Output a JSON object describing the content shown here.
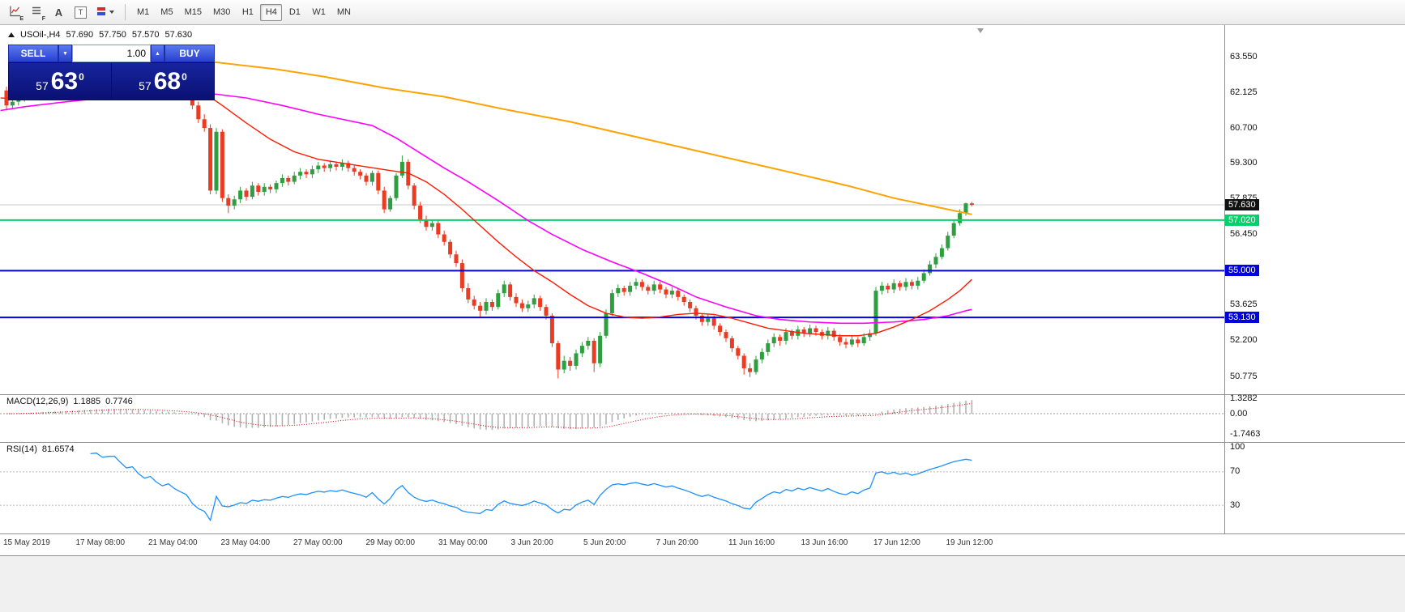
{
  "toolbar": {
    "icons": [
      {
        "name": "chart-window",
        "sub": "E"
      },
      {
        "name": "indicator-list",
        "sub": "F"
      },
      {
        "name": "annotation",
        "label": "A"
      },
      {
        "name": "text-tool",
        "label": "T"
      },
      {
        "name": "colors-dropdown",
        "label": ""
      }
    ],
    "timeframes": [
      "M1",
      "M5",
      "M15",
      "M30",
      "H1",
      "H4",
      "D1",
      "W1",
      "MN"
    ],
    "active_timeframe": "H4"
  },
  "chart": {
    "symbol_header": {
      "symbol": "USOil-,H4",
      "open": "57.690",
      "high": "57.750",
      "low": "57.570",
      "close": "57.630"
    },
    "trade_panel": {
      "sell_label": "SELL",
      "buy_label": "BUY",
      "volume": "1.00",
      "sell_price": {
        "prefix": "57",
        "main": "63",
        "sup": "0"
      },
      "buy_price": {
        "prefix": "57",
        "main": "68",
        "sup": "0"
      }
    },
    "badges": [
      {
        "text": "57.630",
        "price": 57.63,
        "bg": "#111111",
        "fg": "#ffffff"
      },
      {
        "text": "57.020",
        "price": 57.02,
        "bg": "#00d26a",
        "fg": "#ffffff"
      },
      {
        "text": "55.000",
        "price": 55.0,
        "bg": "#0000e0",
        "fg": "#ffffff"
      },
      {
        "text": "53.130",
        "price": 53.13,
        "bg": "#0000e0",
        "fg": "#ffffff"
      }
    ],
    "hlines": [
      {
        "price": 57.63,
        "color": "#c9c9c9",
        "width": 1,
        "layer": "back"
      },
      {
        "price": 57.02,
        "color": "#00d26a",
        "width": 2,
        "layer": "front"
      },
      {
        "price": 55.0,
        "color": "#0000e0",
        "width": 2,
        "layer": "front"
      },
      {
        "price": 53.13,
        "color": "#0000e0",
        "width": 2,
        "layer": "front"
      }
    ]
  },
  "colors": {
    "up": "#2f9e41",
    "down": "#ea3b23",
    "ma_slow": "#ffa200",
    "ma_mid": "#ff00ff",
    "ma_fast": "#ff1a00",
    "rsi": "#1e90ff",
    "macd_hist": "#b2b2b2",
    "macd_signal": "#dd0000",
    "bid_line": "#c9c9c9",
    "level_line": "#bbbbbb"
  },
  "chart_data": {
    "type": "candlestick",
    "symbol": "USOil-",
    "timeframe": "H4",
    "last_quote": {
      "open": 57.69,
      "high": 57.75,
      "low": 57.57,
      "close": 57.63
    },
    "y_axis_labels": [
      "63.550",
      "62.125",
      "60.700",
      "59.300",
      "57.875",
      "56.450",
      "55.000",
      "53.625",
      "52.200",
      "50.775"
    ],
    "ylim": [
      50.3,
      64.2
    ],
    "time_labels": [
      "15 May 2019",
      "17 May 08:00",
      "21 May 04:00",
      "23 May 04:00",
      "27 May 00:00",
      "29 May 00:00",
      "31 May 00:00",
      "3 Jun 20:00",
      "5 Jun 20:00",
      "7 Jun 20:00",
      "11 Jun 16:00",
      "13 Jun 16:00",
      "17 Jun 12:00",
      "19 Jun 12:00"
    ],
    "candles": [
      [
        62.2,
        62.35,
        61.4,
        61.6
      ],
      [
        61.6,
        61.9,
        61.45,
        61.75
      ],
      [
        61.75,
        62.0,
        61.6,
        61.9
      ],
      [
        61.9,
        62.15,
        61.75,
        62.05
      ],
      [
        62.05,
        62.3,
        61.9,
        62.2
      ],
      [
        62.2,
        62.3,
        61.95,
        62.1
      ],
      [
        62.1,
        62.4,
        61.95,
        62.3
      ],
      [
        62.3,
        62.55,
        62.15,
        62.45
      ],
      [
        62.45,
        62.55,
        62.25,
        62.4
      ],
      [
        62.4,
        62.65,
        62.25,
        62.55
      ],
      [
        62.55,
        62.7,
        62.4,
        62.6
      ],
      [
        62.6,
        62.85,
        62.45,
        62.75
      ],
      [
        62.75,
        63.0,
        62.6,
        62.9
      ],
      [
        62.9,
        63.15,
        62.75,
        63.05
      ],
      [
        63.05,
        63.25,
        62.9,
        63.15
      ],
      [
        63.15,
        63.4,
        63.0,
        63.3
      ],
      [
        63.3,
        63.4,
        63.05,
        63.2
      ],
      [
        63.2,
        63.45,
        63.05,
        63.35
      ],
      [
        63.35,
        63.5,
        63.2,
        63.4
      ],
      [
        63.4,
        63.5,
        63.1,
        63.25
      ],
      [
        63.25,
        63.35,
        62.95,
        63.1
      ],
      [
        63.1,
        63.3,
        62.95,
        63.2
      ],
      [
        63.2,
        63.3,
        62.85,
        63.0
      ],
      [
        63.0,
        63.1,
        62.7,
        62.85
      ],
      [
        62.85,
        63.05,
        62.7,
        62.95
      ],
      [
        62.95,
        63.05,
        62.6,
        62.75
      ],
      [
        62.75,
        62.85,
        62.45,
        62.6
      ],
      [
        62.6,
        62.8,
        62.45,
        62.7
      ],
      [
        62.7,
        62.8,
        62.35,
        62.5
      ],
      [
        62.5,
        62.6,
        62.2,
        62.35
      ],
      [
        62.35,
        62.45,
        62.05,
        62.2
      ],
      [
        62.2,
        62.4,
        61.45,
        61.6
      ],
      [
        61.6,
        61.75,
        60.9,
        61.05
      ],
      [
        61.05,
        61.25,
        60.55,
        60.7
      ],
      [
        60.7,
        60.85,
        58.05,
        58.2
      ],
      [
        58.2,
        60.7,
        58.05,
        60.55
      ],
      [
        60.55,
        60.65,
        57.75,
        57.9
      ],
      [
        57.9,
        58.05,
        57.3,
        57.6
      ],
      [
        57.6,
        58.0,
        57.45,
        57.85
      ],
      [
        57.85,
        58.35,
        57.7,
        58.2
      ],
      [
        58.2,
        58.3,
        57.8,
        57.95
      ],
      [
        57.95,
        58.55,
        57.85,
        58.4
      ],
      [
        58.4,
        58.5,
        58.0,
        58.15
      ],
      [
        58.15,
        58.5,
        58.0,
        58.35
      ],
      [
        58.35,
        58.45,
        58.1,
        58.25
      ],
      [
        58.25,
        58.6,
        58.1,
        58.5
      ],
      [
        58.5,
        58.85,
        58.35,
        58.7
      ],
      [
        58.7,
        58.8,
        58.4,
        58.55
      ],
      [
        58.55,
        58.95,
        58.45,
        58.8
      ],
      [
        58.8,
        59.1,
        58.65,
        58.95
      ],
      [
        58.95,
        59.05,
        58.7,
        58.85
      ],
      [
        58.85,
        59.2,
        58.7,
        59.05
      ],
      [
        59.05,
        59.35,
        58.9,
        59.2
      ],
      [
        59.2,
        59.3,
        58.95,
        59.1
      ],
      [
        59.1,
        59.4,
        58.95,
        59.25
      ],
      [
        59.25,
        59.35,
        59.0,
        59.15
      ],
      [
        59.15,
        59.45,
        59.0,
        59.3
      ],
      [
        59.3,
        59.4,
        58.95,
        59.1
      ],
      [
        59.1,
        59.2,
        58.8,
        58.95
      ],
      [
        58.95,
        59.05,
        58.65,
        58.8
      ],
      [
        58.8,
        58.9,
        58.4,
        58.55
      ],
      [
        58.55,
        59.0,
        58.4,
        58.9
      ],
      [
        58.9,
        59.0,
        58.05,
        58.2
      ],
      [
        58.2,
        58.35,
        57.3,
        57.45
      ],
      [
        57.45,
        58.0,
        57.35,
        57.9
      ],
      [
        57.9,
        58.9,
        57.8,
        58.8
      ],
      [
        58.8,
        59.6,
        58.7,
        59.35
      ],
      [
        59.35,
        59.45,
        58.25,
        58.4
      ],
      [
        58.4,
        58.5,
        57.45,
        57.6
      ],
      [
        57.6,
        57.75,
        56.9,
        57.05
      ],
      [
        57.05,
        57.2,
        56.6,
        56.75
      ],
      [
        56.75,
        57.05,
        56.6,
        56.9
      ],
      [
        56.9,
        57.0,
        56.3,
        56.45
      ],
      [
        56.45,
        56.6,
        56.0,
        56.15
      ],
      [
        56.15,
        56.25,
        55.5,
        55.65
      ],
      [
        55.65,
        55.8,
        55.15,
        55.3
      ],
      [
        55.3,
        55.45,
        54.15,
        54.3
      ],
      [
        54.3,
        54.5,
        53.7,
        53.85
      ],
      [
        53.85,
        54.0,
        53.45,
        53.6
      ],
      [
        53.6,
        53.75,
        53.1,
        53.4
      ],
      [
        53.4,
        53.9,
        53.25,
        53.75
      ],
      [
        53.75,
        53.85,
        53.4,
        53.55
      ],
      [
        53.55,
        54.25,
        53.45,
        54.1
      ],
      [
        54.1,
        54.6,
        53.95,
        54.45
      ],
      [
        54.45,
        54.55,
        53.8,
        53.95
      ],
      [
        53.95,
        54.1,
        53.55,
        53.7
      ],
      [
        53.7,
        53.85,
        53.35,
        53.5
      ],
      [
        53.5,
        53.8,
        53.35,
        53.65
      ],
      [
        53.65,
        54.05,
        53.5,
        53.9
      ],
      [
        53.9,
        54.0,
        53.4,
        53.55
      ],
      [
        53.55,
        53.65,
        53.05,
        53.2
      ],
      [
        53.2,
        53.3,
        51.95,
        52.1
      ],
      [
        52.1,
        52.2,
        50.7,
        51.05
      ],
      [
        51.05,
        51.6,
        50.9,
        51.4
      ],
      [
        51.4,
        51.55,
        51.0,
        51.2
      ],
      [
        51.2,
        51.85,
        51.05,
        51.7
      ],
      [
        51.7,
        52.15,
        51.55,
        52.0
      ],
      [
        52.0,
        52.35,
        51.85,
        52.2
      ],
      [
        52.2,
        52.3,
        50.95,
        51.3
      ],
      [
        51.3,
        52.55,
        51.15,
        52.4
      ],
      [
        52.4,
        53.45,
        52.3,
        53.3
      ],
      [
        53.3,
        54.25,
        53.2,
        54.1
      ],
      [
        54.1,
        54.45,
        53.95,
        54.3
      ],
      [
        54.3,
        54.4,
        54.0,
        54.15
      ],
      [
        54.15,
        54.55,
        54.0,
        54.4
      ],
      [
        54.4,
        54.7,
        54.25,
        54.55
      ],
      [
        54.55,
        54.65,
        54.2,
        54.35
      ],
      [
        54.35,
        54.45,
        54.05,
        54.2
      ],
      [
        54.2,
        54.6,
        54.05,
        54.45
      ],
      [
        54.45,
        54.55,
        54.1,
        54.25
      ],
      [
        54.25,
        54.35,
        53.9,
        54.05
      ],
      [
        54.05,
        54.35,
        53.9,
        54.2
      ],
      [
        54.2,
        54.3,
        53.8,
        53.95
      ],
      [
        53.95,
        54.05,
        53.6,
        53.75
      ],
      [
        53.75,
        53.85,
        53.35,
        53.5
      ],
      [
        53.5,
        53.6,
        53.05,
        53.2
      ],
      [
        53.2,
        53.3,
        52.8,
        52.95
      ],
      [
        52.95,
        53.25,
        52.8,
        53.1
      ],
      [
        53.1,
        53.2,
        52.65,
        52.8
      ],
      [
        52.8,
        52.9,
        52.4,
        52.55
      ],
      [
        52.55,
        52.65,
        52.15,
        52.3
      ],
      [
        52.3,
        52.4,
        51.75,
        51.9
      ],
      [
        51.9,
        52.0,
        51.45,
        51.6
      ],
      [
        51.6,
        51.7,
        50.85,
        51.1
      ],
      [
        51.1,
        51.3,
        50.75,
        50.95
      ],
      [
        50.95,
        51.6,
        50.85,
        51.45
      ],
      [
        51.45,
        51.9,
        51.3,
        51.75
      ],
      [
        51.75,
        52.25,
        51.6,
        52.1
      ],
      [
        52.1,
        52.5,
        51.95,
        52.35
      ],
      [
        52.35,
        52.45,
        52.0,
        52.2
      ],
      [
        52.2,
        52.7,
        52.05,
        52.55
      ],
      [
        52.55,
        52.65,
        52.25,
        52.4
      ],
      [
        52.4,
        52.8,
        52.25,
        52.65
      ],
      [
        52.65,
        52.75,
        52.35,
        52.5
      ],
      [
        52.5,
        52.85,
        52.35,
        52.7
      ],
      [
        52.7,
        52.8,
        52.4,
        52.55
      ],
      [
        52.55,
        52.65,
        52.25,
        52.4
      ],
      [
        52.4,
        52.75,
        52.25,
        52.6
      ],
      [
        52.6,
        52.7,
        52.2,
        52.35
      ],
      [
        52.35,
        52.45,
        52.0,
        52.15
      ],
      [
        52.15,
        52.3,
        51.9,
        52.05
      ],
      [
        52.05,
        52.4,
        51.95,
        52.25
      ],
      [
        52.25,
        52.35,
        51.95,
        52.1
      ],
      [
        52.1,
        52.5,
        52.0,
        52.35
      ],
      [
        52.35,
        52.65,
        52.2,
        52.5
      ],
      [
        52.5,
        54.35,
        52.4,
        54.2
      ],
      [
        54.2,
        54.55,
        54.05,
        54.4
      ],
      [
        54.4,
        54.5,
        54.1,
        54.25
      ],
      [
        54.25,
        54.65,
        54.1,
        54.5
      ],
      [
        54.5,
        54.6,
        54.2,
        54.35
      ],
      [
        54.35,
        54.7,
        54.2,
        54.55
      ],
      [
        54.55,
        54.65,
        54.25,
        54.4
      ],
      [
        54.4,
        54.75,
        54.25,
        54.6
      ],
      [
        54.6,
        55.05,
        54.5,
        54.9
      ],
      [
        54.9,
        55.4,
        54.8,
        55.25
      ],
      [
        55.25,
        55.7,
        55.1,
        55.55
      ],
      [
        55.55,
        56.05,
        55.45,
        55.9
      ],
      [
        55.9,
        56.55,
        55.8,
        56.4
      ],
      [
        56.4,
        57.05,
        56.3,
        56.9
      ],
      [
        56.9,
        57.45,
        56.8,
        57.3
      ],
      [
        57.3,
        57.72,
        57.2,
        57.69
      ],
      [
        57.69,
        57.75,
        57.57,
        57.63
      ]
    ],
    "ma_orange": [
      [
        34,
        63.35
      ],
      [
        45,
        63.05
      ],
      [
        53,
        62.75
      ],
      [
        63,
        62.3
      ],
      [
        73,
        61.95
      ],
      [
        83,
        61.45
      ],
      [
        94,
        60.95
      ],
      [
        104,
        60.4
      ],
      [
        114,
        59.85
      ],
      [
        124,
        59.3
      ],
      [
        134,
        58.75
      ],
      [
        141,
        58.35
      ],
      [
        148,
        57.9
      ],
      [
        154,
        57.6
      ],
      [
        159,
        57.35
      ],
      [
        161,
        57.25
      ]
    ],
    "ma_magenta": [
      [
        -1,
        61.4
      ],
      [
        3,
        61.55
      ],
      [
        10,
        61.75
      ],
      [
        20,
        62.0
      ],
      [
        30,
        62.1
      ],
      [
        35,
        62.05
      ],
      [
        40,
        61.9
      ],
      [
        46,
        61.6
      ],
      [
        52,
        61.25
      ],
      [
        57,
        61.0
      ],
      [
        61,
        60.8
      ],
      [
        65,
        60.3
      ],
      [
        69,
        59.7
      ],
      [
        73,
        59.1
      ],
      [
        77,
        58.55
      ],
      [
        82,
        57.8
      ],
      [
        87,
        57.0
      ],
      [
        91,
        56.45
      ],
      [
        96,
        55.85
      ],
      [
        101,
        55.35
      ],
      [
        106,
        54.9
      ],
      [
        111,
        54.4
      ],
      [
        115,
        53.95
      ],
      [
        120,
        53.55
      ],
      [
        125,
        53.2
      ],
      [
        129,
        53.05
      ],
      [
        134,
        52.95
      ],
      [
        139,
        52.9
      ],
      [
        143,
        52.9
      ],
      [
        148,
        52.95
      ],
      [
        153,
        53.05
      ],
      [
        157,
        53.2
      ],
      [
        160,
        53.4
      ],
      [
        161,
        53.45
      ]
    ],
    "ma_red": [
      [
        -1,
        61.9
      ],
      [
        5,
        61.85
      ],
      [
        12,
        62.05
      ],
      [
        20,
        62.3
      ],
      [
        28,
        62.35
      ],
      [
        33,
        62.1
      ],
      [
        36,
        61.6
      ],
      [
        40,
        60.9
      ],
      [
        44,
        60.25
      ],
      [
        48,
        59.75
      ],
      [
        52,
        59.45
      ],
      [
        56,
        59.3
      ],
      [
        60,
        59.15
      ],
      [
        64,
        59.0
      ],
      [
        67,
        58.9
      ],
      [
        70,
        58.55
      ],
      [
        73,
        58.05
      ],
      [
        76,
        57.45
      ],
      [
        79,
        56.8
      ],
      [
        82,
        56.15
      ],
      [
        85,
        55.55
      ],
      [
        88,
        55.0
      ],
      [
        91,
        54.55
      ],
      [
        94,
        54.05
      ],
      [
        97,
        53.6
      ],
      [
        100,
        53.3
      ],
      [
        103,
        53.15
      ],
      [
        106,
        53.1
      ],
      [
        109,
        53.15
      ],
      [
        112,
        53.25
      ],
      [
        115,
        53.3
      ],
      [
        118,
        53.25
      ],
      [
        121,
        53.1
      ],
      [
        124,
        52.9
      ],
      [
        127,
        52.7
      ],
      [
        130,
        52.6
      ],
      [
        133,
        52.5
      ],
      [
        136,
        52.45
      ],
      [
        139,
        52.4
      ],
      [
        142,
        52.4
      ],
      [
        145,
        52.5
      ],
      [
        148,
        52.75
      ],
      [
        151,
        53.05
      ],
      [
        154,
        53.4
      ],
      [
        157,
        53.85
      ],
      [
        159,
        54.2
      ],
      [
        161,
        54.65
      ]
    ],
    "macd": {
      "title": "MACD(12,26,9)",
      "main_value": "1.1885",
      "signal_value": "0.7746",
      "params": [
        12,
        26,
        9
      ],
      "scale_labels": [
        "1.3282",
        "0.00",
        "-1.7463"
      ]
    },
    "rsi": {
      "title": "RSI(14)",
      "value": "81.6574",
      "period": 14,
      "scale_labels": [
        "100",
        "70",
        "30"
      ],
      "levels": [
        70,
        30
      ]
    }
  }
}
